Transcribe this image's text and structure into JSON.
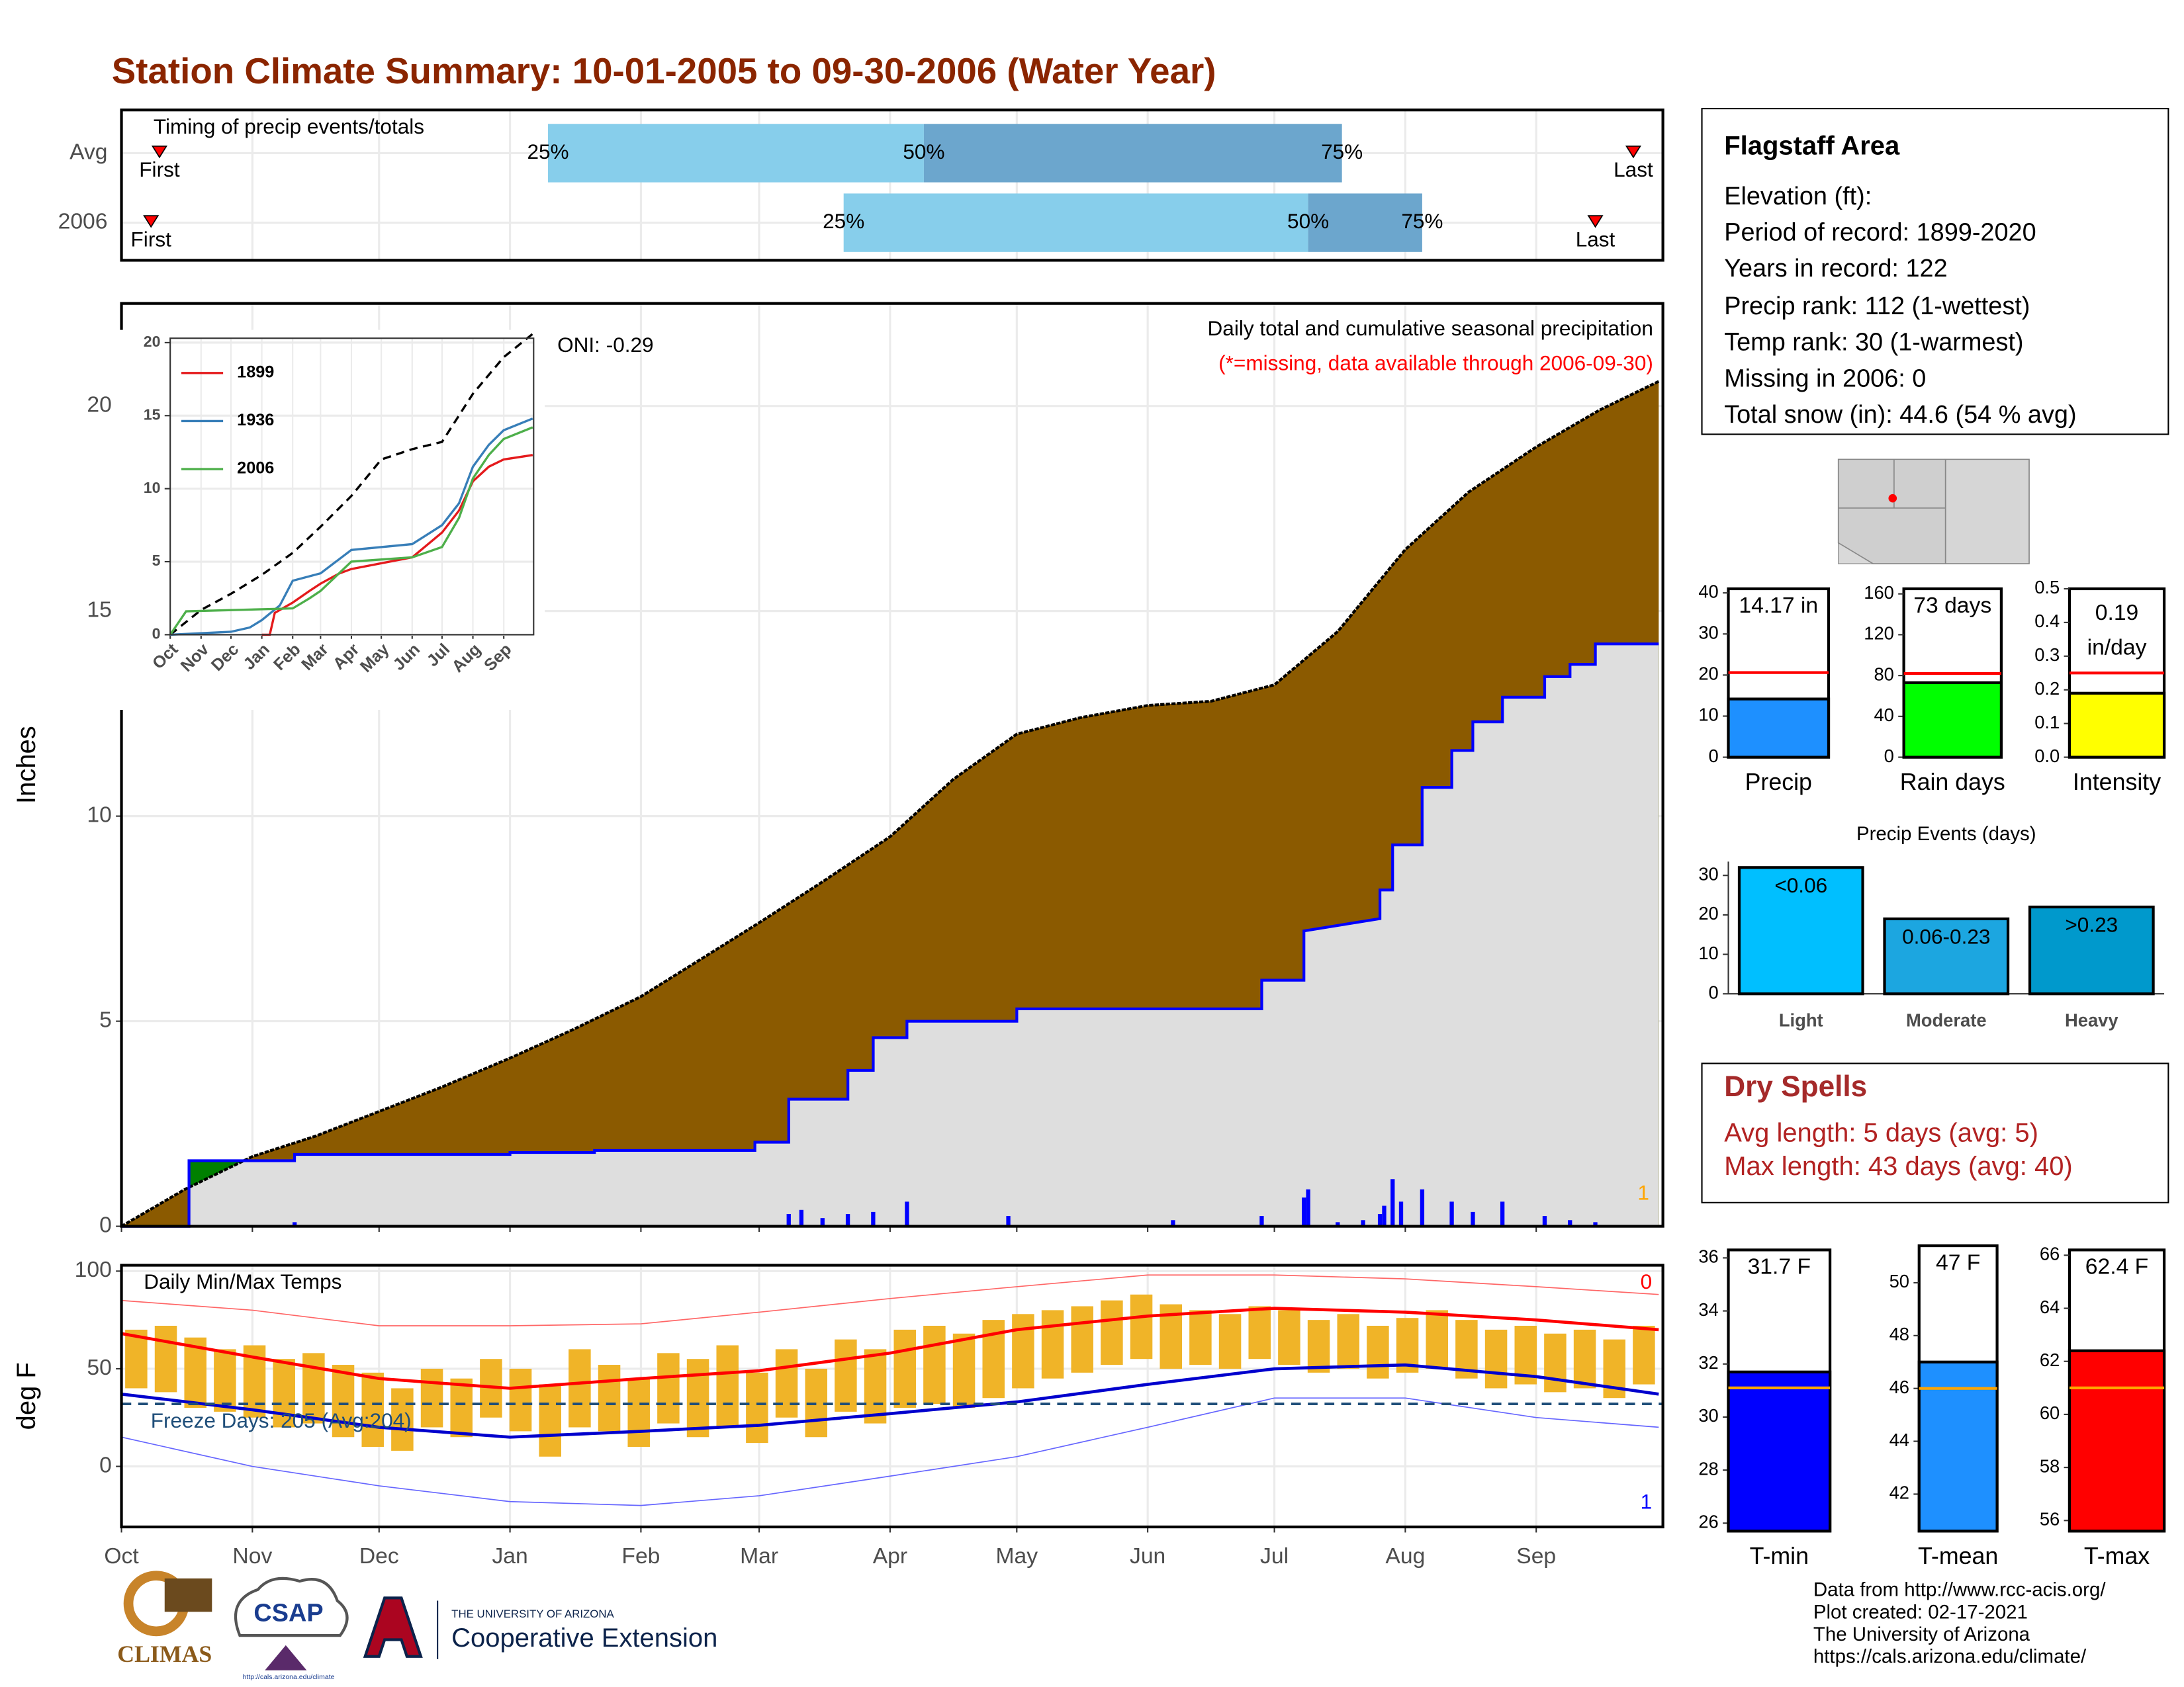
{
  "title": "Station Climate Summary: 10-01-2005 to 09-30-2006 (Water Year)",
  "timing": {
    "title": "Timing of precip events/totals",
    "xlim": [
      0,
      365
    ],
    "labels": [
      "First",
      "25%",
      "50%",
      "75%",
      "Last"
    ],
    "rows": [
      {
        "name": "Avg",
        "values": [
          9,
          101,
          190,
          289,
          358
        ]
      },
      {
        "name": "2006",
        "values": [
          7,
          171,
          281,
          308,
          349
        ]
      }
    ]
  },
  "chart_data": [
    {
      "type": "area",
      "ylabel": "Inches",
      "xlim": [
        0,
        365
      ],
      "ylim": [
        0,
        22.5
      ],
      "yticks": [
        0,
        5,
        10,
        15,
        20
      ],
      "grid": true,
      "annotations": [
        {
          "text": "Daily total and cumulative seasonal precipitation",
          "color": "#000000"
        },
        {
          "text": "(*=missing, data available through 2006-09-30)",
          "color": "#ff0000"
        },
        {
          "text": "ONI: -0.29",
          "color": "#000000"
        },
        {
          "text": "1",
          "color": "#ffa500"
        }
      ],
      "series": [
        {
          "color": "#8b5a00",
          "x": [
            0,
            15,
            31,
            46,
            61,
            76,
            92,
            107,
            123,
            137,
            151,
            166,
            182,
            197,
            212,
            227,
            243,
            258,
            273,
            288,
            304,
            319,
            335,
            350,
            364
          ],
          "values": [
            0,
            0.9,
            1.7,
            2.2,
            2.8,
            3.4,
            4.1,
            4.8,
            5.6,
            6.5,
            7.4,
            8.4,
            9.5,
            10.9,
            12.0,
            12.4,
            12.7,
            12.8,
            13.2,
            14.5,
            16.5,
            17.9,
            19.0,
            19.9,
            20.6
          ]
        },
        {
          "color": "#0000ff",
          "fill": "#dedede",
          "above_color": "#008000",
          "x": [
            0,
            16,
            16,
            41,
            41,
            92,
            92,
            112,
            112,
            150,
            150,
            158,
            158,
            172,
            172,
            178,
            178,
            186,
            186,
            212,
            212,
            270,
            270,
            280,
            280,
            298,
            298,
            301,
            301,
            308,
            308,
            315,
            315,
            320,
            320,
            327,
            327,
            337,
            337,
            343,
            343,
            349,
            349,
            364
          ],
          "values": [
            0,
            0,
            1.6,
            1.6,
            1.75,
            1.75,
            1.8,
            1.8,
            1.85,
            1.85,
            2.05,
            2.05,
            3.1,
            3.1,
            3.8,
            3.8,
            4.6,
            4.6,
            5.0,
            5.0,
            5.3,
            5.3,
            6.0,
            6.0,
            7.2,
            7.5,
            8.2,
            8.2,
            9.3,
            9.3,
            10.7,
            10.7,
            11.6,
            11.6,
            12.3,
            12.3,
            12.9,
            12.9,
            13.4,
            13.4,
            13.7,
            13.7,
            14.2,
            14.2
          ]
        }
      ],
      "bars": {
        "color": "#0000ff",
        "x": [
          41,
          158,
          161,
          166,
          172,
          178,
          186,
          210,
          249,
          270,
          280,
          281,
          288,
          294,
          298,
          299,
          301,
          303,
          308,
          315,
          320,
          327,
          337,
          343,
          349
        ],
        "values": [
          0.1,
          0.3,
          0.4,
          0.2,
          0.3,
          0.35,
          0.6,
          0.25,
          0.15,
          0.25,
          0.7,
          0.9,
          0.1,
          0.15,
          0.3,
          0.5,
          1.15,
          0.6,
          0.9,
          0.6,
          0.35,
          0.6,
          0.25,
          0.15,
          0.1
        ]
      }
    },
    {
      "type": "line",
      "xlim": [
        0,
        365
      ],
      "ylim": [
        0,
        20.3
      ],
      "yticks": [
        0,
        5,
        10,
        15,
        20
      ],
      "xticks": [
        {
          "value": 0,
          "label": "Oct"
        },
        {
          "value": 31,
          "label": "Nov"
        },
        {
          "value": 61,
          "label": "Dec"
        },
        {
          "value": 92,
          "label": "Jan"
        },
        {
          "value": 123,
          "label": "Feb"
        },
        {
          "value": 151,
          "label": "Mar"
        },
        {
          "value": 182,
          "label": "Apr"
        },
        {
          "value": 212,
          "label": "May"
        },
        {
          "value": 243,
          "label": "Jun"
        },
        {
          "value": 273,
          "label": "Jul"
        },
        {
          "value": 304,
          "label": "Aug"
        },
        {
          "value": 335,
          "label": "Sep"
        }
      ],
      "series": [
        {
          "color": "#000000",
          "dashed": true,
          "x": [
            0,
            31,
            61,
            92,
            123,
            151,
            182,
            212,
            243,
            273,
            304,
            335,
            364
          ],
          "values": [
            0,
            1.7,
            2.8,
            4.1,
            5.6,
            7.4,
            9.5,
            12.0,
            12.7,
            13.2,
            16.5,
            19.0,
            20.6
          ]
        },
        {
          "name": "1899",
          "color": "#e41a1c",
          "x": [
            92,
            100,
            105,
            123,
            140,
            151,
            170,
            182,
            243,
            273,
            290,
            304,
            320,
            335,
            364
          ],
          "values": [
            0,
            0,
            1.5,
            2.2,
            3.0,
            3.5,
            4.2,
            4.5,
            5.3,
            7.0,
            8.5,
            10.5,
            11.5,
            12.0,
            12.3
          ]
        },
        {
          "name": "1936",
          "color": "#377eb8",
          "x": [
            0,
            61,
            80,
            92,
            110,
            123,
            151,
            182,
            243,
            273,
            290,
            304,
            320,
            335,
            364
          ],
          "values": [
            0,
            0.2,
            0.5,
            1.0,
            2.0,
            3.7,
            4.2,
            5.8,
            6.2,
            7.5,
            9.0,
            11.5,
            13.0,
            14.0,
            14.8
          ]
        },
        {
          "name": "2006",
          "color": "#4daf4a",
          "x": [
            0,
            16,
            123,
            140,
            151,
            182,
            243,
            273,
            290,
            304,
            320,
            335,
            364
          ],
          "values": [
            0,
            1.6,
            1.8,
            2.5,
            3.0,
            5.0,
            5.3,
            6.0,
            8.0,
            10.7,
            12.3,
            13.4,
            14.2
          ]
        }
      ]
    },
    {
      "type": "range",
      "title": "Daily Min/Max Temps",
      "ylabel": "deg F",
      "xlim": [
        0,
        365
      ],
      "ylim": [
        -31,
        103
      ],
      "yticks": [
        0,
        50,
        100
      ],
      "xticks": [
        {
          "value": 0,
          "label": "Oct"
        },
        {
          "value": 31,
          "label": "Nov"
        },
        {
          "value": 61,
          "label": "Dec"
        },
        {
          "value": 92,
          "label": "Jan"
        },
        {
          "value": 123,
          "label": "Feb"
        },
        {
          "value": 151,
          "label": "Mar"
        },
        {
          "value": 182,
          "label": "Apr"
        },
        {
          "value": 212,
          "label": "May"
        },
        {
          "value": 243,
          "label": "Jun"
        },
        {
          "value": 273,
          "label": "Jul"
        },
        {
          "value": 304,
          "label": "Aug"
        },
        {
          "value": 335,
          "label": "Sep"
        }
      ],
      "grid": true,
      "freeze_line": 32,
      "freeze_label": "Freeze Days: 205 (Avg:204)",
      "freeze_color": "#1f4e79",
      "annotations": [
        {
          "text": "0",
          "color": "#ff0000"
        },
        {
          "text": "1",
          "color": "#0000ff"
        }
      ],
      "ranges": {
        "color": "#f0b428",
        "x": [
          0,
          7,
          14,
          21,
          28,
          35,
          42,
          49,
          56,
          63,
          70,
          77,
          84,
          91,
          98,
          105,
          112,
          119,
          126,
          133,
          140,
          147,
          154,
          161,
          168,
          175,
          182,
          189,
          196,
          203,
          210,
          217,
          224,
          231,
          238,
          245,
          252,
          259,
          266,
          273,
          280,
          287,
          294,
          301,
          308,
          315,
          322,
          329,
          336,
          343,
          350,
          357
        ],
        "min": [
          40,
          38,
          30,
          28,
          25,
          20,
          22,
          15,
          10,
          8,
          20,
          15,
          25,
          18,
          5,
          20,
          18,
          10,
          22,
          15,
          20,
          12,
          25,
          15,
          28,
          22,
          30,
          32,
          30,
          35,
          40,
          45,
          48,
          52,
          55,
          50,
          52,
          50,
          55,
          52,
          48,
          50,
          45,
          48,
          50,
          45,
          40,
          42,
          38,
          40,
          35,
          42
        ],
        "max": [
          70,
          72,
          66,
          60,
          62,
          55,
          58,
          52,
          48,
          40,
          50,
          45,
          55,
          50,
          42,
          60,
          52,
          45,
          58,
          55,
          62,
          48,
          60,
          50,
          65,
          60,
          70,
          72,
          68,
          75,
          78,
          80,
          82,
          85,
          88,
          83,
          80,
          78,
          82,
          80,
          75,
          78,
          72,
          76,
          80,
          75,
          70,
          72,
          68,
          70,
          65,
          72
        ]
      },
      "x": [
        0,
        31,
        61,
        92,
        123,
        151,
        182,
        212,
        243,
        273,
        304,
        335,
        364
      ],
      "normals": [
        {
          "color": "#ff0000",
          "values": [
            68,
            56,
            45,
            40,
            45,
            49,
            58,
            70,
            77,
            81,
            79,
            75,
            70
          ]
        },
        {
          "color": "#0000cd",
          "values": [
            37,
            29,
            20,
            15,
            18,
            21,
            27,
            33,
            42,
            50,
            52,
            46,
            37
          ]
        }
      ],
      "records": [
        {
          "color": "#ff6666",
          "values": [
            85,
            80,
            72,
            72,
            73,
            79,
            86,
            92,
            98,
            98,
            96,
            92,
            88
          ]
        },
        {
          "color": "#6666ff",
          "values": [
            15,
            0,
            -10,
            -18,
            -20,
            -15,
            -5,
            5,
            20,
            35,
            35,
            25,
            20
          ]
        }
      ]
    },
    {
      "type": "bar",
      "frame": true,
      "categories": [
        "Precip"
      ],
      "values": [
        14.17
      ],
      "value_labels": [
        "14.17 in"
      ],
      "average": 20.6,
      "avg_color": "#ff0000",
      "color": "#1e90ff",
      "ylim": [
        0,
        41
      ],
      "yticks": [
        0,
        10,
        20,
        30,
        40
      ]
    },
    {
      "type": "bar",
      "frame": true,
      "categories": [
        "Rain days"
      ],
      "values": [
        73
      ],
      "value_labels": [
        "73 days"
      ],
      "average": 82,
      "avg_color": "#ff0000",
      "color": "#00ff00",
      "ylim": [
        0,
        165
      ],
      "yticks": [
        0,
        40,
        80,
        120,
        160
      ]
    },
    {
      "type": "bar",
      "frame": true,
      "categories": [
        "Intensity"
      ],
      "values": [
        0.19
      ],
      "value_labels": [
        "0.19 in/day"
      ],
      "average": 0.25,
      "avg_color": "#ff0000",
      "color": "#ffff00",
      "ylim": [
        0,
        0.5
      ],
      "yticks": [
        {
          "value": 0,
          "label": "0.0"
        },
        0.1,
        0.2,
        0.3,
        0.4,
        0.5
      ]
    },
    {
      "type": "bar",
      "frame": false,
      "title": "Precip Events (days)",
      "categories": [
        "Light",
        "Moderate",
        "Heavy"
      ],
      "values": [
        32,
        19,
        22
      ],
      "value_labels": [
        "<0.06",
        "0.06-0.23",
        ">0.23"
      ],
      "colors": [
        "#00bfff",
        "#1ca6e0",
        "#0099cc"
      ],
      "ylim": [
        0,
        33.5
      ],
      "yticks": [
        0,
        10,
        20,
        30
      ]
    },
    {
      "type": "bar",
      "frame": true,
      "categories": [
        "T-min"
      ],
      "values": [
        31.7
      ],
      "value_labels": [
        "31.7 F"
      ],
      "average": 31.1,
      "avg_color": "#ffa500",
      "color": "#0000ff",
      "ylim": [
        25.7,
        36.3
      ],
      "yticks": [
        26,
        28,
        30,
        32,
        34,
        36
      ]
    },
    {
      "type": "bar",
      "frame": true,
      "categories": [
        "T-mean"
      ],
      "values": [
        47
      ],
      "value_labels": [
        "47 F"
      ],
      "average": 46,
      "avg_color": "#ffa500",
      "color": "#1e90ff",
      "ylim": [
        40.6,
        51.4
      ],
      "yticks": [
        42,
        44,
        46,
        48,
        50
      ]
    },
    {
      "type": "bar",
      "frame": true,
      "categories": [
        "T-max"
      ],
      "values": [
        62.4
      ],
      "value_labels": [
        "62.4 F"
      ],
      "average": 61,
      "avg_color": "#ffa500",
      "color": "#ff0000",
      "ylim": [
        55.6,
        66.2
      ],
      "yticks": [
        56,
        58,
        60,
        62,
        64,
        66
      ]
    }
  ],
  "station": {
    "name": "Flagstaff Area",
    "lines": [
      "Elevation (ft):",
      "Period of record: 1899-2020",
      "Years in record: 122",
      "Precip rank: 112 (1-wettest)",
      "Temp rank: 30 (1-warmest)",
      "Missing in 2006: 0",
      "Total snow (in): 44.6 (54 % avg)"
    ]
  },
  "dry_spells": {
    "title": "Dry Spells",
    "lines": [
      "Avg length: 5 days (avg: 5)",
      "Max length: 43 days (avg: 40)"
    ]
  },
  "footer": [
    "Data from http://www.rcc-acis.org/",
    "Plot created: 02-17-2021",
    "The University of Arizona",
    "https://cals.arizona.edu/climate/"
  ],
  "logos": {
    "climas": "CLIMAS",
    "csap": "CSAP",
    "csap_url": "http://cals.arizona.edu/climate",
    "ua": "THE UNIVERSITY OF ARIZONA",
    "coop": "Cooperative Extension"
  }
}
